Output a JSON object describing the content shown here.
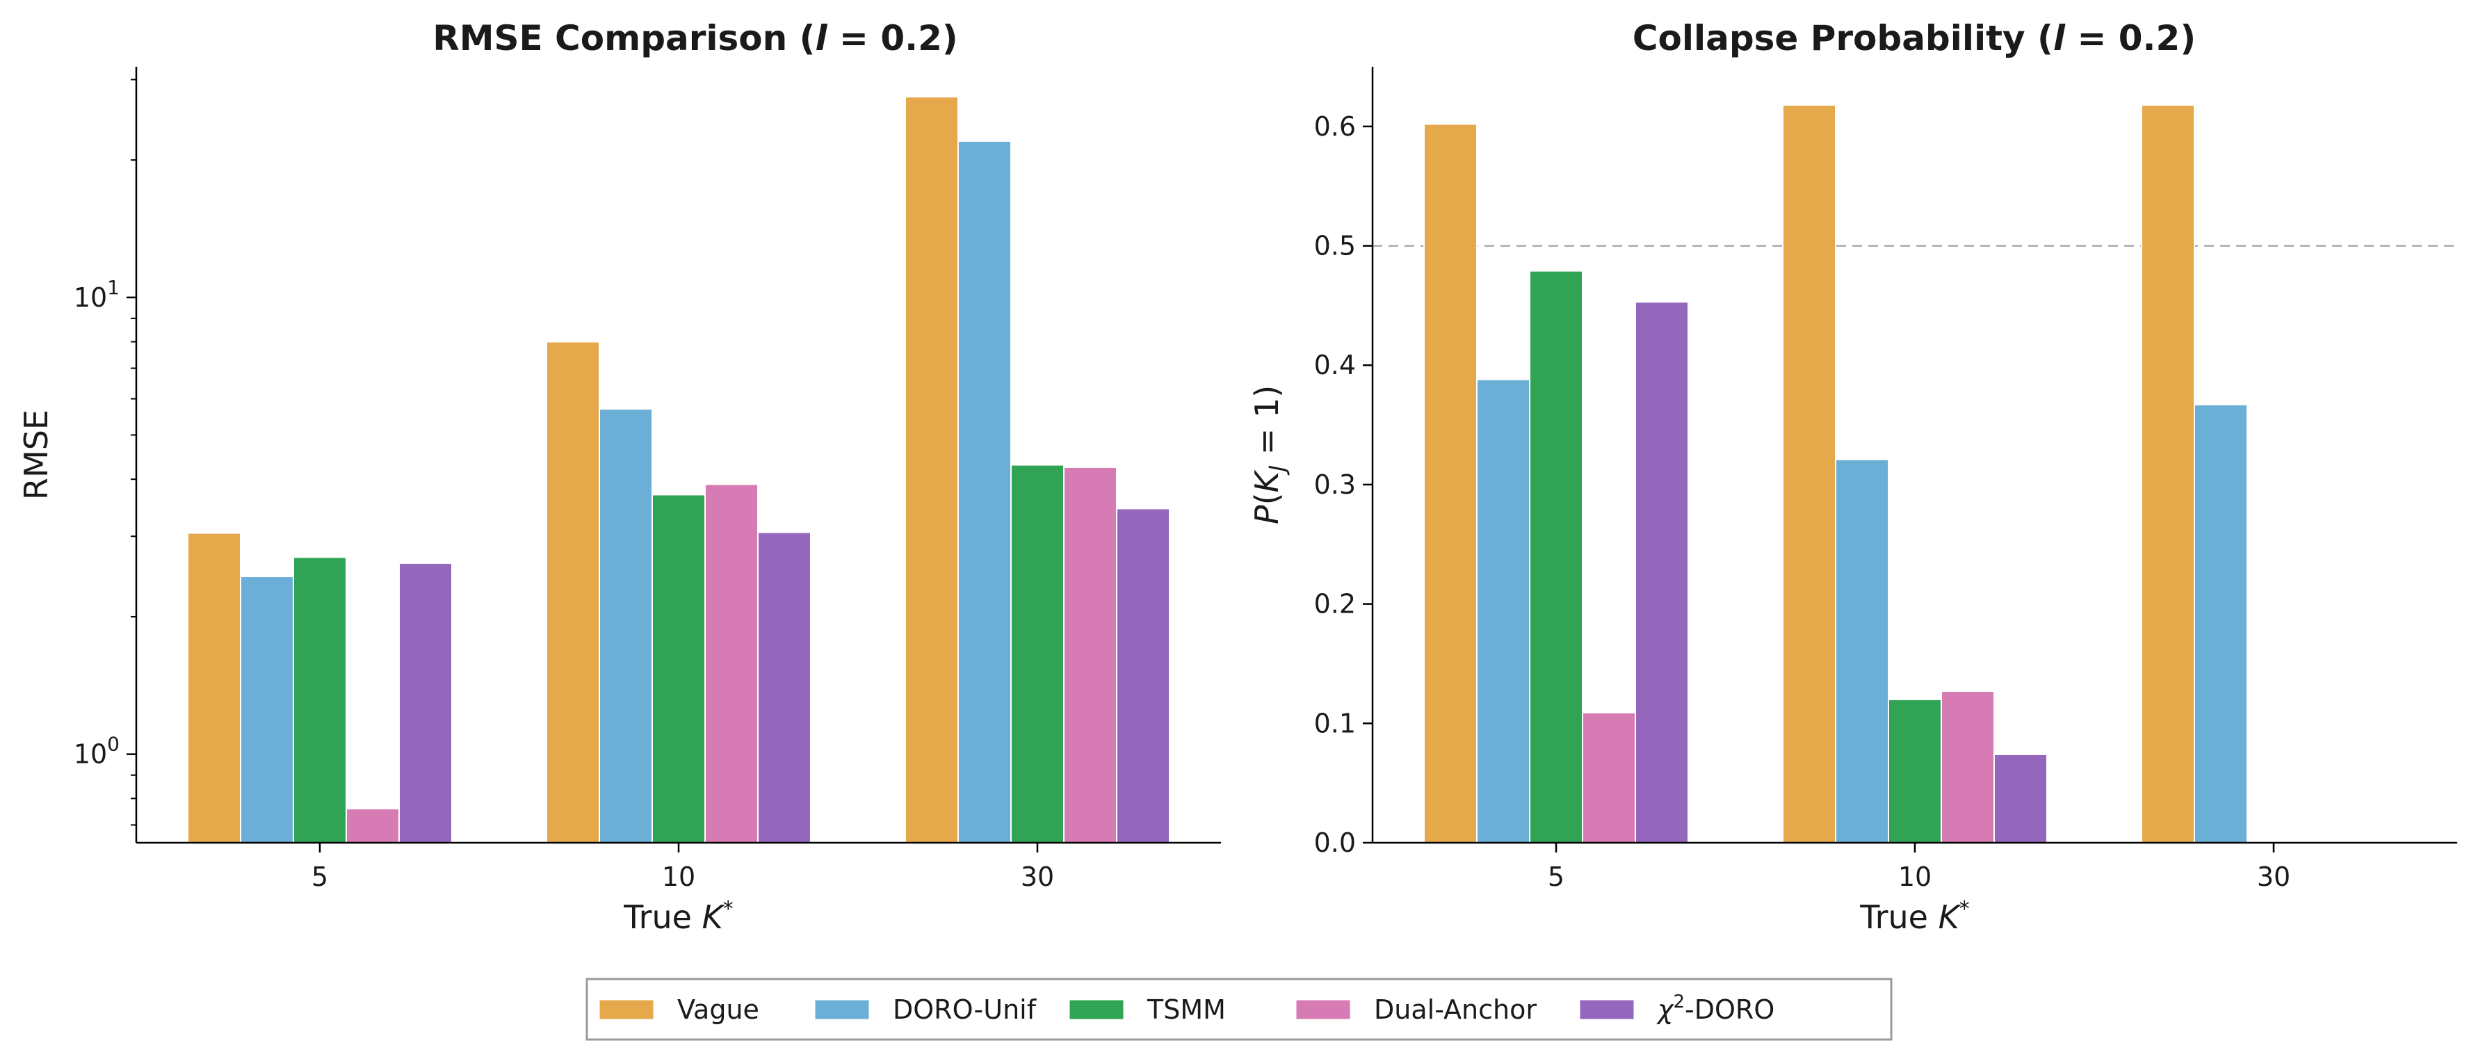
{
  "chart_data": [
    {
      "type": "bar",
      "title": "RMSE Comparison",
      "title_param": "(l = 0.2)",
      "xlabel": "True K*",
      "ylabel": "RMSE",
      "yscale": "log",
      "ylim": [
        0.64,
        32
      ],
      "yticks": [
        {
          "value": 1,
          "label": "10^0"
        },
        {
          "value": 10,
          "label": "10^1"
        }
      ],
      "categories": [
        "5",
        "10",
        "30"
      ],
      "series": [
        {
          "name": "Vague",
          "values": [
            3.05,
            8.0,
            27.5
          ]
        },
        {
          "name": "DORO-Unif",
          "values": [
            2.45,
            5.7,
            22.0
          ]
        },
        {
          "name": "TSMM",
          "values": [
            2.7,
            3.7,
            4.3
          ]
        },
        {
          "name": "Dual-Anchor",
          "values": [
            0.76,
            3.9,
            4.25
          ]
        },
        {
          "name": "χ²-DORO",
          "values": [
            2.62,
            3.06,
            3.45
          ]
        }
      ]
    },
    {
      "type": "bar",
      "title": "Collapse Probability",
      "title_param": "(l = 0.2)",
      "xlabel": "True K*",
      "ylabel": "P(K_J = 1)",
      "yscale": "linear",
      "ylim": [
        0,
        0.65
      ],
      "yticks": [
        0.0,
        0.1,
        0.2,
        0.3,
        0.4,
        0.5,
        0.6
      ],
      "reference_line": 0.5,
      "categories": [
        "5",
        "10",
        "30"
      ],
      "series": [
        {
          "name": "Vague",
          "values": [
            0.602,
            0.618,
            0.618
          ]
        },
        {
          "name": "DORO-Unif",
          "values": [
            0.388,
            0.321,
            0.367
          ]
        },
        {
          "name": "TSMM",
          "values": [
            0.479,
            0.12,
            0.0
          ]
        },
        {
          "name": "Dual-Anchor",
          "values": [
            0.109,
            0.127,
            0.0
          ]
        },
        {
          "name": "χ²-DORO",
          "values": [
            0.453,
            0.074,
            0.0
          ]
        }
      ]
    }
  ],
  "legend": {
    "items": [
      {
        "label": "Vague",
        "color": "#E5A84B"
      },
      {
        "label": "DORO-Unif",
        "color": "#6BAED6"
      },
      {
        "label": "TSMM",
        "color": "#31A354"
      },
      {
        "label": "Dual-Anchor",
        "color": "#D67BB3"
      },
      {
        "label": "χ²-DORO",
        "color": "#9467BD"
      }
    ]
  }
}
